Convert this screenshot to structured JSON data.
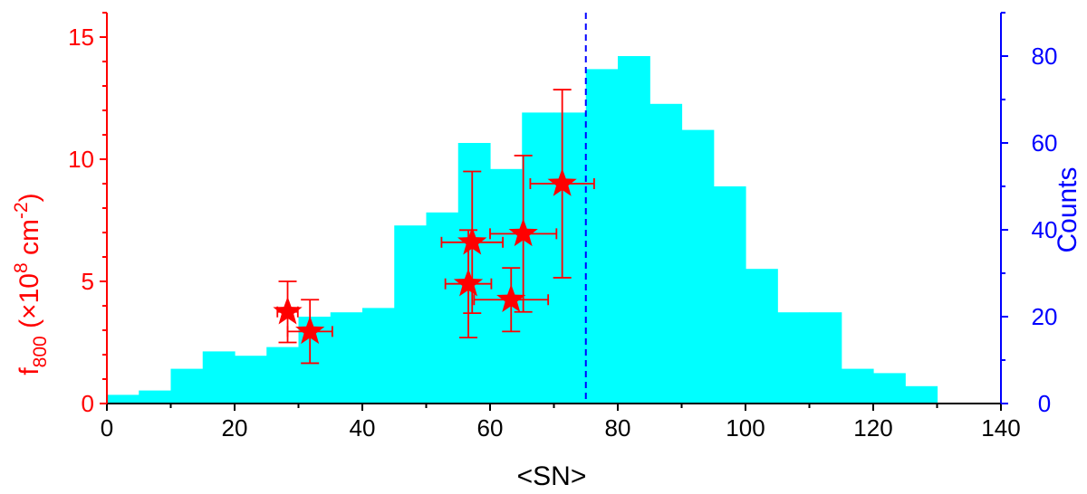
{
  "chart_data": {
    "type": "bar",
    "title": "",
    "xlabel": "<SN>",
    "ylabel_left": {
      "main": "f",
      "sub": "800",
      "mid": " (×10",
      "sup1": "8",
      "mid2": " cm",
      "sup2": "-2",
      "end": ")"
    },
    "ylabel_right": "Counts",
    "xlim": [
      0,
      140
    ],
    "ylim_left": [
      0,
      16
    ],
    "ylim_right": [
      0,
      90
    ],
    "x_ticks": [
      0,
      20,
      40,
      60,
      80,
      100,
      120,
      140
    ],
    "y_left_ticks": [
      0,
      5,
      10,
      15
    ],
    "y_right_ticks": [
      0,
      20,
      40,
      60,
      80
    ],
    "histogram": {
      "axis": "right",
      "bin_width": 5,
      "bin_edges_start": [
        0,
        5,
        10,
        15,
        20,
        25,
        30,
        35,
        40,
        45,
        50,
        55,
        60,
        65,
        70,
        75,
        80,
        85,
        90,
        95,
        100,
        105,
        110,
        115,
        120,
        125
      ],
      "counts": [
        2,
        3,
        8,
        12,
        11,
        13,
        20,
        21,
        22,
        41,
        44,
        60,
        54,
        67,
        67,
        77,
        80,
        69,
        63,
        50,
        31,
        21,
        21,
        8,
        7,
        4
      ]
    },
    "points": {
      "axis": "left",
      "marker": "star",
      "data": [
        {
          "x": 28.3,
          "y": 3.75,
          "xerr": 1.6,
          "yerr": 1.25
        },
        {
          "x": 31.8,
          "y": 2.95,
          "xerr": 3.5,
          "yerr": 1.3
        },
        {
          "x": 56.6,
          "y": 4.9,
          "xerr": 3.6,
          "yerr": 2.2
        },
        {
          "x": 57.2,
          "y": 6.6,
          "xerr": 4.8,
          "yerr": 2.9
        },
        {
          "x": 63.3,
          "y": 4.25,
          "xerr": 5.8,
          "yerr": 1.3
        },
        {
          "x": 65.2,
          "y": 6.95,
          "xerr": 5.2,
          "yerr": 3.2
        },
        {
          "x": 71.3,
          "y": 9.0,
          "xerr": 5.0,
          "yerr": 3.85
        }
      ]
    },
    "vline": {
      "x": 75
    },
    "colors": {
      "hist": "#00ffff",
      "points": "#ff0000",
      "left_axis": "#ff0000",
      "right_axis": "#0000ff",
      "vline": "#0000ff",
      "x_axis": "#000000"
    }
  }
}
